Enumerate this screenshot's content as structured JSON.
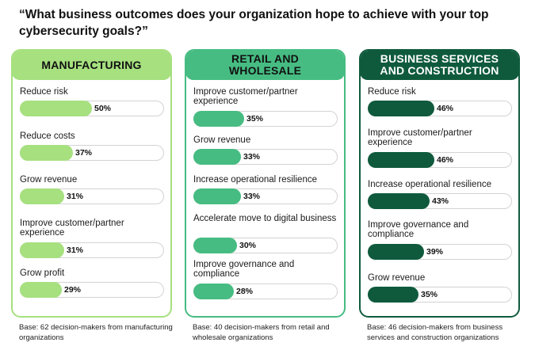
{
  "title": "“What business outcomes does your organization hope to achieve with your top cybersecurity goals?”",
  "colors": {
    "manufacturing_border": "#a6e07f",
    "manufacturing_header": "#a6e07f",
    "manufacturing_fill": "#a6e07f",
    "retail_border": "#46bc82",
    "retail_header": "#46bc82",
    "retail_fill": "#46bc82",
    "business_border": "#0f5a3d",
    "business_header": "#0f5a3d",
    "business_fill": "#0f5a3d",
    "business_header_text": "#ffffff"
  },
  "chart_data": [
    {
      "type": "bar",
      "title": "MANUFACTURING",
      "categories": [
        "Reduce risk",
        "Reduce costs",
        "Grow revenue",
        "Improve customer/partner experience",
        "Grow profit"
      ],
      "values": [
        50,
        37,
        31,
        31,
        29
      ],
      "value_labels": [
        "50%",
        "37%",
        "31%",
        "31%",
        "29%"
      ],
      "base": "Base: 62 decision-makers from manufacturing organizations"
    },
    {
      "type": "bar",
      "title": "RETAIL AND WHOLESALE",
      "categories": [
        "Improve customer/partner experience",
        "Grow revenue",
        "Increase operational resilience",
        "Accelerate move to digital business",
        "Improve governance and compliance"
      ],
      "values": [
        35,
        33,
        33,
        30,
        28
      ],
      "value_labels": [
        "35%",
        "33%",
        "33%",
        "30%",
        "28%"
      ],
      "base": "Base: 40 decision-makers from retail and wholesale organizations"
    },
    {
      "type": "bar",
      "title": "BUSINESS SERVICES AND CONSTRUCTION",
      "categories": [
        "Reduce risk",
        "Improve customer/partner experience",
        "Increase operational resilience",
        "Improve governance and compliance",
        "Grow revenue"
      ],
      "values": [
        46,
        46,
        43,
        39,
        35
      ],
      "value_labels": [
        "46%",
        "46%",
        "43%",
        "39%",
        "35%"
      ],
      "base": "Base: 46 decision-makers from business services and construction organizations"
    }
  ]
}
